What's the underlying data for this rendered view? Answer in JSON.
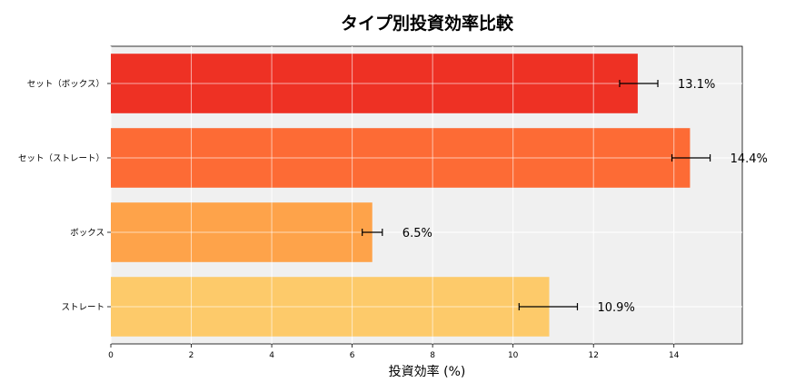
{
  "chart_data": {
    "type": "bar",
    "orientation": "horizontal",
    "title": "タイプ別投資効率比較",
    "xlabel": "投資効率 (%)",
    "ylabel": "",
    "categories": [
      "セット（ボックス）",
      "セット（ストレート）",
      "ボックス",
      "ストレート"
    ],
    "values": [
      13.1,
      14.4,
      6.5,
      10.9
    ],
    "error_low": [
      12.65,
      13.95,
      6.25,
      10.15
    ],
    "error_high": [
      13.6,
      14.9,
      6.75,
      11.6
    ],
    "value_labels": [
      "13.1%",
      "14.4%",
      "6.5%",
      "10.9%"
    ],
    "colors": [
      "#ee3124",
      "#fd6b35",
      "#fea34a",
      "#fdca6a"
    ],
    "xlim": [
      0,
      15.7
    ],
    "xticks": [
      0,
      2,
      4,
      6,
      8,
      10,
      12,
      14
    ],
    "grid": true,
    "legend": "none",
    "background": "#f0f0f0"
  }
}
